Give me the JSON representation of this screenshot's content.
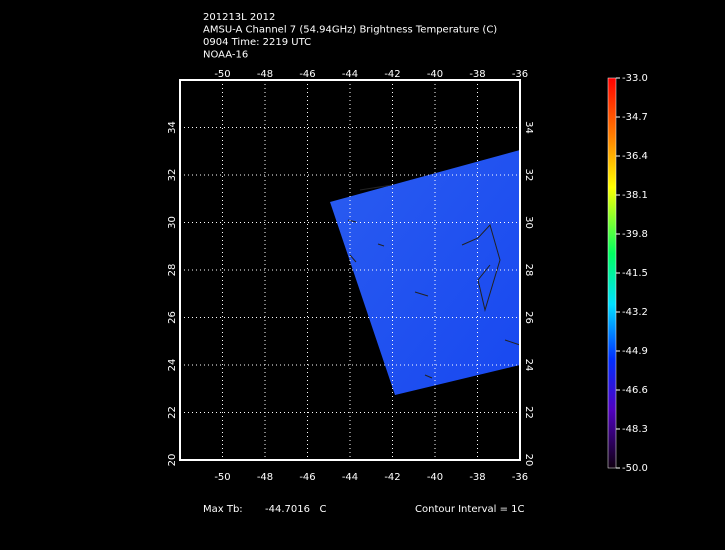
{
  "header": {
    "lines": [
      "201213L 2012",
      "AMSU-A Channel 7 (54.94GHz) Brightness Temperature (C)",
      "0904 Time: 2219 UTC",
      "NOAA-16"
    ]
  },
  "map": {
    "lon_range": [
      -52,
      -36
    ],
    "lat_range": [
      20,
      36
    ],
    "lon_ticks": [
      -50,
      -48,
      -46,
      -44,
      -42,
      -40,
      -38,
      -36
    ],
    "lat_ticks": [
      20,
      22,
      24,
      26,
      28,
      30,
      32,
      34
    ],
    "grid": true
  },
  "colorbar": {
    "range": [
      -50,
      -33
    ],
    "ticks": [
      {
        "value": -33,
        "label": "-33.0"
      },
      {
        "value": -34.7,
        "label": "-34.7"
      },
      {
        "value": -36.4,
        "label": "-36.4"
      },
      {
        "value": -38.1,
        "label": "-38.1"
      },
      {
        "value": -39.8,
        "label": "-39.8"
      },
      {
        "value": -41.5,
        "label": "-41.5"
      },
      {
        "value": -43.2,
        "label": "-43.2"
      },
      {
        "value": -44.9,
        "label": "-44.9"
      },
      {
        "value": -46.6,
        "label": "-46.6"
      },
      {
        "value": -48.3,
        "label": "-48.3"
      },
      {
        "value": -50,
        "label": "-50.0"
      }
    ]
  },
  "footer": {
    "max_label": "Max Tb:",
    "max_value": "-44.7016   C",
    "contour": "Contour Interval = 1C"
  }
}
